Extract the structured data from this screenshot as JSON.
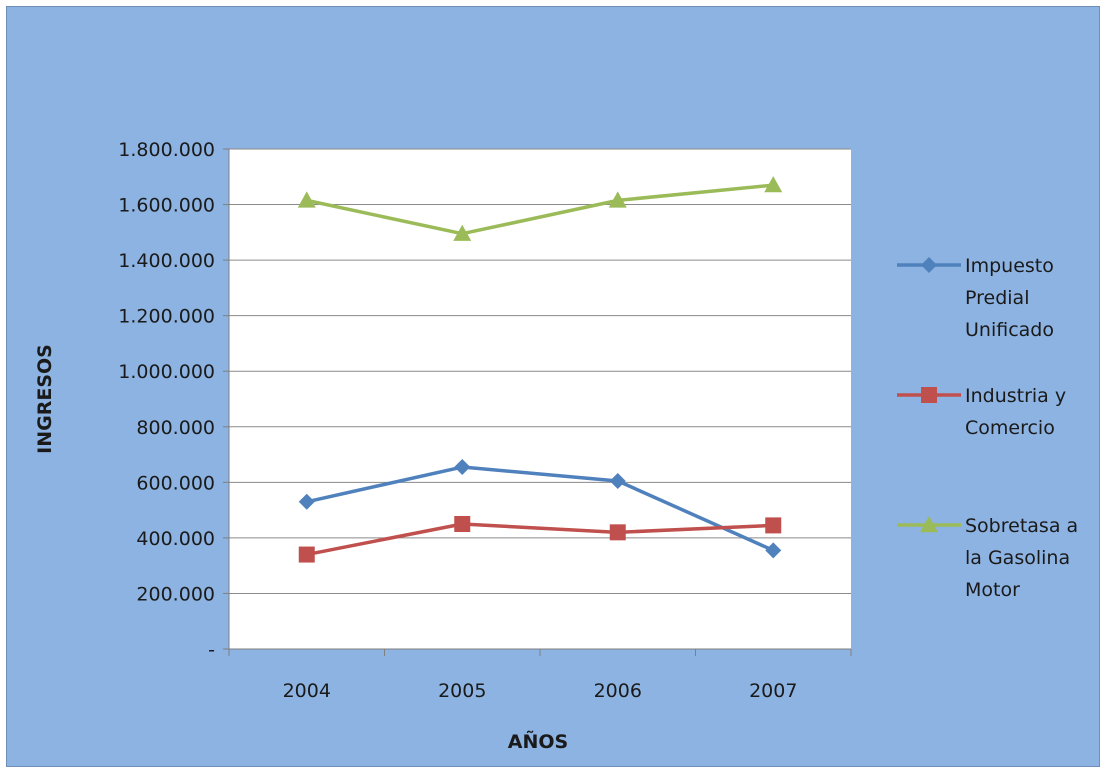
{
  "chart_data": {
    "type": "line",
    "title": "",
    "xlabel": "AÑOS",
    "ylabel": "INGRESOS",
    "categories": [
      "2004",
      "2005",
      "2006",
      "2007"
    ],
    "y_tick_labels": [
      "-",
      "200.000",
      "400.000",
      "600.000",
      "800.000",
      "1.000.000",
      "1.200.000",
      "1.400.000",
      "1.600.000",
      "1.800.000"
    ],
    "ylim": [
      0,
      1800000
    ],
    "y_step": 200000,
    "grid": true,
    "legend_position": "right",
    "series": [
      {
        "name": "Impuesto Predial Unificado",
        "legend_lines": [
          "Impuesto",
          "Predial",
          "Unificado"
        ],
        "values": [
          530000,
          655000,
          605000,
          355000
        ],
        "color": "#4f81bd",
        "marker": "diamond"
      },
      {
        "name": "Industria y Comercio",
        "legend_lines": [
          "Industria y",
          "Comercio"
        ],
        "values": [
          340000,
          450000,
          420000,
          445000
        ],
        "color": "#c0504d",
        "marker": "square"
      },
      {
        "name": "Sobretasa a la Gasolina Motor",
        "legend_lines": [
          "Sobretasa a",
          "la Gasolina",
          "Motor"
        ],
        "values": [
          1615000,
          1495000,
          1615000,
          1670000
        ],
        "color": "#9bbb59",
        "marker": "triangle"
      }
    ]
  }
}
